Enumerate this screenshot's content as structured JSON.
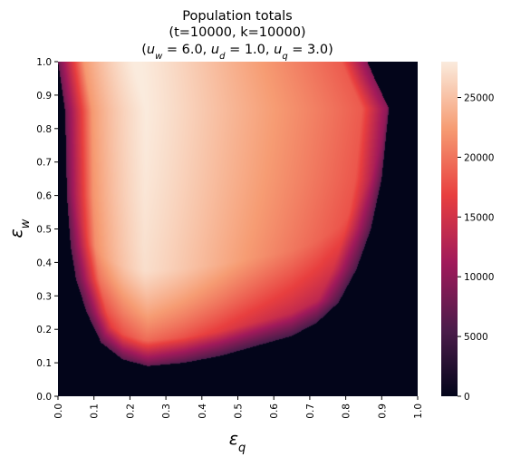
{
  "chart_data": {
    "type": "heatmap",
    "title_lines": [
      "Population totals",
      "(t=10000, k=10000)"
    ],
    "title_params": [
      {
        "sym": "u",
        "sub": "w",
        "value": "6.0"
      },
      {
        "sym": "u",
        "sub": "d",
        "value": "1.0"
      },
      {
        "sym": "u",
        "sub": "q",
        "value": "3.0"
      }
    ],
    "xlabel": {
      "sym": "ε",
      "sub": "q"
    },
    "ylabel": {
      "sym": "ε",
      "sub": "w"
    },
    "xlim": [
      0.0,
      1.0
    ],
    "ylim": [
      0.0,
      1.0
    ],
    "x_ticks": [
      "0.0",
      "0.1",
      "0.2",
      "0.3",
      "0.4",
      "0.5",
      "0.6",
      "0.7",
      "0.8",
      "0.9",
      "1.0"
    ],
    "y_ticks": [
      "0.0",
      "0.1",
      "0.2",
      "0.3",
      "0.4",
      "0.5",
      "0.6",
      "0.7",
      "0.8",
      "0.9",
      "1.0"
    ],
    "colorbar": {
      "range": [
        0,
        28000
      ],
      "ticks": [
        {
          "value": 0,
          "label": "0"
        },
        {
          "value": 5000,
          "label": "5000"
        },
        {
          "value": 10000,
          "label": "10000"
        },
        {
          "value": 15000,
          "label": "15000"
        },
        {
          "value": 20000,
          "label": "20000"
        },
        {
          "value": 25000,
          "label": "25000"
        }
      ],
      "colormap": "rocket",
      "stops": [
        "#03051a",
        "#4c1d4b",
        "#a11a5b",
        "#e83f3f",
        "#f69c73",
        "#faebdd"
      ]
    },
    "region": {
      "description_boundary_left": [
        [
          0.0,
          1.0
        ],
        [
          0.02,
          0.85
        ],
        [
          0.025,
          0.6
        ],
        [
          0.035,
          0.45
        ],
        [
          0.05,
          0.35
        ],
        [
          0.08,
          0.25
        ],
        [
          0.12,
          0.16
        ],
        [
          0.18,
          0.11
        ],
        [
          0.25,
          0.09
        ]
      ],
      "description_boundary_bottom": [
        [
          0.25,
          0.09
        ],
        [
          0.35,
          0.1
        ],
        [
          0.45,
          0.12
        ],
        [
          0.55,
          0.15
        ],
        [
          0.65,
          0.18
        ],
        [
          0.72,
          0.22
        ],
        [
          0.78,
          0.28
        ],
        [
          0.83,
          0.38
        ],
        [
          0.87,
          0.5
        ],
        [
          0.9,
          0.65
        ],
        [
          0.92,
          0.86
        ]
      ],
      "description_boundary_right": [
        [
          0.92,
          0.86
        ],
        [
          0.88,
          0.95
        ],
        [
          0.86,
          1.0
        ]
      ],
      "peak": {
        "eps_q": 0.14,
        "eps_w": 0.95,
        "value": 28000
      },
      "outside_value": 0
    }
  }
}
